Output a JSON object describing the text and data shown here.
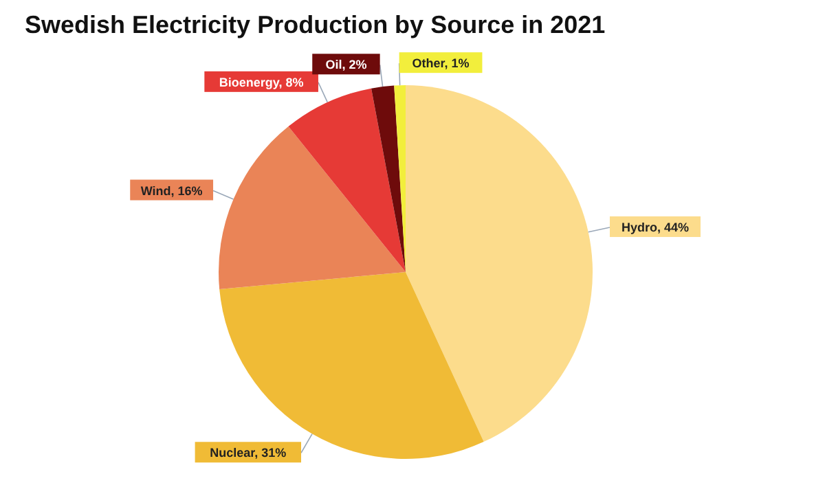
{
  "chart_data": {
    "type": "pie",
    "title": "Swedish Electricity Production by Source in 2021",
    "categories": [
      "Hydro",
      "Nuclear",
      "Wind",
      "Bioenergy",
      "Oil",
      "Other"
    ],
    "values": [
      44,
      31,
      16,
      8,
      2,
      1
    ],
    "value_labels": [
      "44%",
      "31%",
      "16%",
      "8%",
      "2%",
      "1%"
    ],
    "colors": [
      "#fcdc8c",
      "#f0bb36",
      "#ea8457",
      "#e63a36",
      "#6e0b0b",
      "#f2ee3c"
    ],
    "legend": false
  }
}
